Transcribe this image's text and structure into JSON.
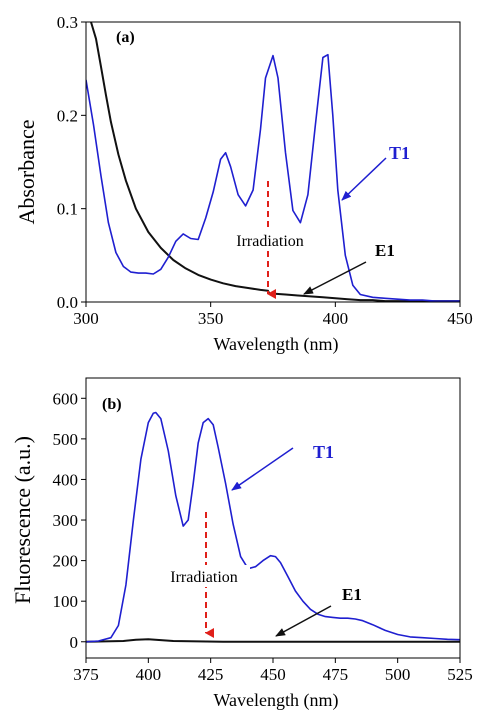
{
  "chart_data": [
    {
      "type": "line",
      "panel_label": "(a)",
      "xlabel": "Wavelength (nm)",
      "ylabel": "Absorbance",
      "xlim": [
        300,
        450
      ],
      "ylim": [
        0,
        0.3
      ],
      "xticks": [
        300,
        350,
        400,
        450
      ],
      "xtick_labels": [
        "300",
        "350",
        "400",
        "450"
      ],
      "yticks": [
        0,
        0.1,
        0.2,
        0.3
      ],
      "ytick_labels": [
        "0.0",
        "0.1",
        "0.2",
        "0.3"
      ],
      "grid": false,
      "series": [
        {
          "name": "T1",
          "color": "#1f1fd0",
          "x": [
            300,
            303,
            306,
            309,
            312,
            315,
            318,
            321,
            324,
            327,
            330,
            333,
            336,
            339,
            342,
            345,
            348,
            351,
            354,
            356,
            358,
            361,
            364,
            367,
            370,
            372,
            375,
            377,
            380,
            383,
            386,
            389,
            392,
            395,
            397,
            399,
            401,
            404,
            407,
            410,
            415,
            420,
            425,
            430,
            435,
            440,
            445,
            450
          ],
          "y": [
            0.238,
            0.19,
            0.135,
            0.085,
            0.053,
            0.038,
            0.032,
            0.031,
            0.031,
            0.03,
            0.035,
            0.048,
            0.065,
            0.073,
            0.068,
            0.067,
            0.09,
            0.118,
            0.153,
            0.16,
            0.145,
            0.115,
            0.103,
            0.12,
            0.185,
            0.24,
            0.264,
            0.24,
            0.16,
            0.098,
            0.085,
            0.115,
            0.19,
            0.262,
            0.265,
            0.2,
            0.12,
            0.05,
            0.018,
            0.008,
            0.005,
            0.004,
            0.003,
            0.002,
            0.002,
            0.001,
            0.001,
            0.001
          ]
        },
        {
          "name": "E1",
          "color": "#111111",
          "x": [
            302,
            304,
            306,
            308,
            310,
            313,
            316,
            320,
            325,
            330,
            335,
            340,
            345,
            350,
            355,
            360,
            365,
            370,
            373,
            373.5,
            375,
            380,
            385,
            390,
            395,
            400,
            405,
            410,
            415,
            420,
            430,
            440,
            450
          ],
          "y": [
            0.3,
            0.282,
            0.252,
            0.222,
            0.193,
            0.158,
            0.13,
            0.1,
            0.075,
            0.058,
            0.045,
            0.036,
            0.029,
            0.024,
            0.02,
            0.017,
            0.015,
            0.013,
            0.012,
            0.009,
            0.009,
            0.008,
            0.007,
            0.006,
            0.005,
            0.004,
            0.003,
            0.002,
            0.002,
            0.001,
            0.001,
            0.001,
            0.001
          ]
        }
      ],
      "annotations": {
        "irradiation": "Irradiation",
        "t1_label": "T1",
        "e1_label": "E1"
      }
    },
    {
      "type": "line",
      "panel_label": "(b)",
      "xlabel": "Wavelength (nm)",
      "ylabel": "Fluorescence (a.u.)",
      "xlim": [
        375,
        525
      ],
      "ylim": [
        -40,
        650
      ],
      "xticks": [
        375,
        400,
        425,
        450,
        475,
        500,
        525
      ],
      "xtick_labels": [
        "375",
        "400",
        "425",
        "450",
        "475",
        "500",
        "525"
      ],
      "yticks": [
        0,
        100,
        200,
        300,
        400,
        500,
        600
      ],
      "ytick_labels": [
        "0",
        "100",
        "200",
        "300",
        "400",
        "500",
        "600"
      ],
      "grid": false,
      "series": [
        {
          "name": "T1",
          "color": "#1f1fd0",
          "x": [
            375,
            380,
            385,
            388,
            391,
            394,
            397,
            400,
            402,
            403,
            405,
            408,
            411,
            414,
            416,
            418,
            420,
            422,
            424,
            426,
            428,
            431,
            434,
            437,
            440,
            443,
            446,
            449,
            451,
            453,
            456,
            459,
            462,
            465,
            468,
            471,
            474,
            477,
            480,
            483,
            486,
            490,
            495,
            500,
            505,
            510,
            515,
            520,
            525
          ],
          "y": [
            0,
            2,
            10,
            40,
            140,
            300,
            450,
            540,
            563,
            565,
            550,
            470,
            360,
            285,
            300,
            390,
            490,
            540,
            550,
            535,
            480,
            390,
            290,
            210,
            180,
            185,
            200,
            212,
            210,
            195,
            160,
            125,
            100,
            80,
            68,
            62,
            60,
            58,
            58,
            56,
            52,
            42,
            28,
            18,
            12,
            10,
            8,
            6,
            5
          ]
        },
        {
          "name": "E1",
          "color": "#111111",
          "x": [
            375,
            390,
            395,
            400,
            405,
            410,
            420,
            430,
            450,
            475,
            500,
            525
          ],
          "y": [
            0,
            2,
            5,
            6,
            4,
            2,
            1,
            0,
            0,
            0,
            0,
            0
          ]
        }
      ],
      "annotations": {
        "irradiation": "Irradiation",
        "t1_label": "T1",
        "e1_label": "E1"
      }
    }
  ]
}
